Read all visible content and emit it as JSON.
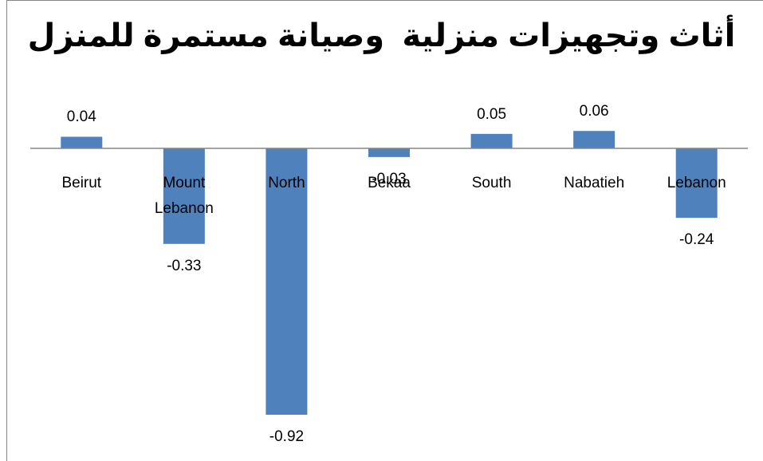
{
  "chart_data": {
    "type": "bar",
    "title": "أثاث وتجهيزات منزلية  وصيانة مستمرة للمنزل",
    "categories": [
      "Beirut",
      "Mount Lebanon",
      "North",
      "Bekaa",
      "South",
      "Nabatieh",
      "Lebanon"
    ],
    "values": [
      0.04,
      -0.33,
      -0.92,
      -0.03,
      0.05,
      0.06,
      -0.24
    ],
    "color": "#4f81bd"
  }
}
